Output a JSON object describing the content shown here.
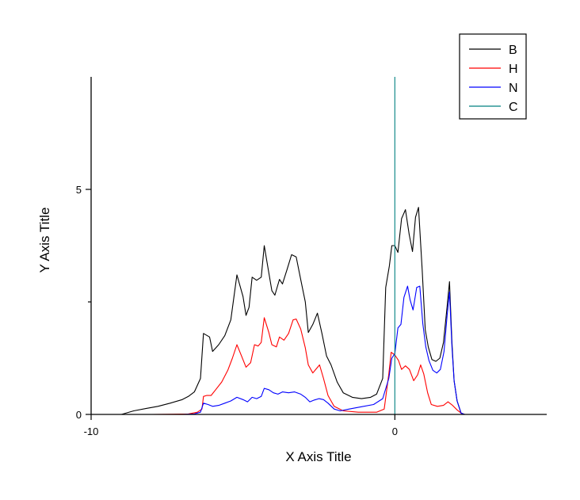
{
  "chart_data": {
    "type": "line",
    "title": "",
    "xlabel": "X Axis Title",
    "ylabel": "Y Axis Title",
    "xlim": [
      -10,
      5
    ],
    "ylim": [
      0,
      7.5
    ],
    "x_ticks": [
      -10,
      0
    ],
    "y_ticks": [
      0,
      5
    ],
    "y_minor_ticks": [
      2.5
    ],
    "x_tick_labels": [
      "-10",
      "0"
    ],
    "y_tick_labels": [
      "0",
      "5"
    ],
    "grid": false,
    "legend_position": "top-right",
    "series": [
      {
        "name": "B",
        "color": "#000000",
        "points": [
          [
            -10,
            0
          ],
          [
            -9,
            0
          ],
          [
            -8.6,
            0.08
          ],
          [
            -8.2,
            0.13
          ],
          [
            -7.8,
            0.18
          ],
          [
            -7.4,
            0.25
          ],
          [
            -7,
            0.33
          ],
          [
            -6.8,
            0.4
          ],
          [
            -6.6,
            0.5
          ],
          [
            -6.4,
            0.8
          ],
          [
            -6.3,
            1.8
          ],
          [
            -6.1,
            1.72
          ],
          [
            -6,
            1.4
          ],
          [
            -5.8,
            1.55
          ],
          [
            -5.6,
            1.75
          ],
          [
            -5.4,
            2.1
          ],
          [
            -5.2,
            3.1
          ],
          [
            -5,
            2.62
          ],
          [
            -4.9,
            2.2
          ],
          [
            -4.8,
            2.38
          ],
          [
            -4.7,
            3.05
          ],
          [
            -4.55,
            2.98
          ],
          [
            -4.4,
            3.05
          ],
          [
            -4.3,
            3.75
          ],
          [
            -4.2,
            3.35
          ],
          [
            -4.05,
            2.75
          ],
          [
            -3.95,
            2.65
          ],
          [
            -3.8,
            3.0
          ],
          [
            -3.7,
            2.9
          ],
          [
            -3.55,
            3.22
          ],
          [
            -3.4,
            3.55
          ],
          [
            -3.25,
            3.5
          ],
          [
            -3.1,
            3.0
          ],
          [
            -2.95,
            2.5
          ],
          [
            -2.85,
            1.82
          ],
          [
            -2.7,
            2.0
          ],
          [
            -2.55,
            2.25
          ],
          [
            -2.4,
            1.8
          ],
          [
            -2.25,
            1.3
          ],
          [
            -2.1,
            1.1
          ],
          [
            -1.9,
            0.72
          ],
          [
            -1.7,
            0.48
          ],
          [
            -1.4,
            0.38
          ],
          [
            -1.1,
            0.35
          ],
          [
            -0.8,
            0.38
          ],
          [
            -0.6,
            0.45
          ],
          [
            -0.4,
            0.8
          ],
          [
            -0.3,
            2.82
          ],
          [
            -0.18,
            3.3
          ],
          [
            -0.1,
            3.75
          ],
          [
            0,
            3.75
          ],
          [
            0.1,
            3.6
          ],
          [
            0.22,
            4.35
          ],
          [
            0.35,
            4.55
          ],
          [
            0.47,
            4.0
          ],
          [
            0.58,
            3.62
          ],
          [
            0.68,
            4.38
          ],
          [
            0.78,
            4.6
          ],
          [
            0.9,
            3.22
          ],
          [
            1.0,
            1.88
          ],
          [
            1.1,
            1.5
          ],
          [
            1.22,
            1.22
          ],
          [
            1.35,
            1.18
          ],
          [
            1.48,
            1.25
          ],
          [
            1.6,
            1.6
          ],
          [
            1.72,
            2.4
          ],
          [
            1.8,
            2.95
          ],
          [
            1.88,
            1.6
          ],
          [
            1.95,
            0.75
          ],
          [
            2.05,
            0.3
          ],
          [
            2.18,
            0.03
          ],
          [
            2.3,
            0
          ],
          [
            5,
            0
          ]
        ]
      },
      {
        "name": "H",
        "color": "#ff0000",
        "points": [
          [
            -10,
            0
          ],
          [
            -8,
            0
          ],
          [
            -6.8,
            0.01
          ],
          [
            -6.5,
            0.05
          ],
          [
            -6.35,
            0.12
          ],
          [
            -6.3,
            0.4
          ],
          [
            -6.2,
            0.42
          ],
          [
            -6.05,
            0.42
          ],
          [
            -5.9,
            0.55
          ],
          [
            -5.7,
            0.72
          ],
          [
            -5.5,
            0.98
          ],
          [
            -5.35,
            1.25
          ],
          [
            -5.2,
            1.55
          ],
          [
            -5.05,
            1.3
          ],
          [
            -4.9,
            1.05
          ],
          [
            -4.75,
            1.15
          ],
          [
            -4.62,
            1.55
          ],
          [
            -4.5,
            1.52
          ],
          [
            -4.4,
            1.6
          ],
          [
            -4.3,
            2.15
          ],
          [
            -4.15,
            1.82
          ],
          [
            -4.05,
            1.55
          ],
          [
            -3.9,
            1.5
          ],
          [
            -3.8,
            1.72
          ],
          [
            -3.65,
            1.65
          ],
          [
            -3.5,
            1.8
          ],
          [
            -3.35,
            2.1
          ],
          [
            -3.25,
            2.12
          ],
          [
            -3.1,
            1.9
          ],
          [
            -2.95,
            1.48
          ],
          [
            -2.85,
            1.1
          ],
          [
            -2.7,
            0.92
          ],
          [
            -2.58,
            1.02
          ],
          [
            -2.48,
            1.1
          ],
          [
            -2.35,
            0.8
          ],
          [
            -2.2,
            0.42
          ],
          [
            -2.0,
            0.18
          ],
          [
            -1.7,
            0.08
          ],
          [
            -1.2,
            0.05
          ],
          [
            -0.6,
            0.05
          ],
          [
            -0.35,
            0.12
          ],
          [
            -0.2,
            0.9
          ],
          [
            -0.12,
            1.38
          ],
          [
            0,
            1.32
          ],
          [
            0.12,
            1.2
          ],
          [
            0.22,
            1.0
          ],
          [
            0.35,
            1.08
          ],
          [
            0.48,
            1.0
          ],
          [
            0.62,
            0.75
          ],
          [
            0.75,
            0.88
          ],
          [
            0.85,
            1.1
          ],
          [
            0.95,
            0.9
          ],
          [
            1.08,
            0.48
          ],
          [
            1.2,
            0.22
          ],
          [
            1.4,
            0.18
          ],
          [
            1.6,
            0.2
          ],
          [
            1.75,
            0.28
          ],
          [
            1.9,
            0.2
          ],
          [
            2.05,
            0.1
          ],
          [
            2.2,
            0.02
          ],
          [
            2.3,
            0
          ],
          [
            5,
            0
          ]
        ]
      },
      {
        "name": "N",
        "color": "#0000ff",
        "points": [
          [
            -10,
            0
          ],
          [
            -7,
            0
          ],
          [
            -6.6,
            0.01
          ],
          [
            -6.4,
            0.05
          ],
          [
            -6.3,
            0.25
          ],
          [
            -6.15,
            0.22
          ],
          [
            -6.0,
            0.18
          ],
          [
            -5.8,
            0.2
          ],
          [
            -5.6,
            0.25
          ],
          [
            -5.4,
            0.3
          ],
          [
            -5.2,
            0.38
          ],
          [
            -5.0,
            0.33
          ],
          [
            -4.85,
            0.28
          ],
          [
            -4.7,
            0.38
          ],
          [
            -4.55,
            0.35
          ],
          [
            -4.4,
            0.4
          ],
          [
            -4.3,
            0.58
          ],
          [
            -4.15,
            0.55
          ],
          [
            -4.0,
            0.48
          ],
          [
            -3.85,
            0.45
          ],
          [
            -3.7,
            0.5
          ],
          [
            -3.5,
            0.48
          ],
          [
            -3.3,
            0.5
          ],
          [
            -3.1,
            0.45
          ],
          [
            -2.95,
            0.38
          ],
          [
            -2.8,
            0.28
          ],
          [
            -2.65,
            0.32
          ],
          [
            -2.5,
            0.35
          ],
          [
            -2.35,
            0.33
          ],
          [
            -2.2,
            0.25
          ],
          [
            -2.0,
            0.12
          ],
          [
            -1.8,
            0.08
          ],
          [
            -1.5,
            0.12
          ],
          [
            -1.1,
            0.17
          ],
          [
            -0.7,
            0.22
          ],
          [
            -0.4,
            0.35
          ],
          [
            -0.2,
            0.8
          ],
          [
            -0.1,
            1.25
          ],
          [
            0,
            1.35
          ],
          [
            0.1,
            1.92
          ],
          [
            0.2,
            2.0
          ],
          [
            0.3,
            2.6
          ],
          [
            0.42,
            2.85
          ],
          [
            0.5,
            2.55
          ],
          [
            0.6,
            2.32
          ],
          [
            0.72,
            2.82
          ],
          [
            0.82,
            2.85
          ],
          [
            0.92,
            2.02
          ],
          [
            1.02,
            1.5
          ],
          [
            1.12,
            1.2
          ],
          [
            1.25,
            0.98
          ],
          [
            1.38,
            0.92
          ],
          [
            1.5,
            1.0
          ],
          [
            1.62,
            1.4
          ],
          [
            1.72,
            2.2
          ],
          [
            1.8,
            2.72
          ],
          [
            1.88,
            1.5
          ],
          [
            1.95,
            0.75
          ],
          [
            2.05,
            0.3
          ],
          [
            2.18,
            0.03
          ],
          [
            2.3,
            0
          ],
          [
            5,
            0
          ]
        ]
      },
      {
        "name": "C",
        "color": "#008080",
        "points": [
          [
            0,
            0
          ],
          [
            0,
            7.5
          ]
        ]
      }
    ]
  }
}
